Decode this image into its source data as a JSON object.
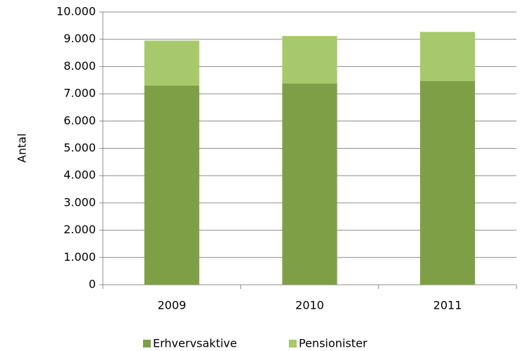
{
  "chart_data": {
    "type": "stacked-bar",
    "categories": [
      "2009",
      "2010",
      "2011"
    ],
    "series": [
      {
        "name": "Erhvervsaktive",
        "color": "#7f9f46",
        "values": [
          7300,
          7380,
          7470
        ]
      },
      {
        "name": "Pensionister",
        "color": "#a8c96b",
        "values": [
          1650,
          1740,
          1800
        ]
      }
    ],
    "y_label": "Antal",
    "ylim": [
      0,
      10000
    ],
    "yticks": [
      0,
      {
        "value": 1000,
        "label": "1.000"
      },
      {
        "value": 2000,
        "label": "2.000"
      },
      {
        "value": 3000,
        "label": "3.000"
      },
      {
        "value": 4000,
        "label": "4.000"
      },
      {
        "value": 5000,
        "label": "5.000"
      },
      {
        "value": 6000,
        "label": "6.000"
      },
      {
        "value": 7000,
        "label": "7.000"
      },
      {
        "value": 8000,
        "label": "8.000"
      },
      {
        "value": 9000,
        "label": "9.000"
      },
      {
        "value": 10000,
        "label": "10.000"
      }
    ],
    "grid": true,
    "legend": "bottom"
  }
}
